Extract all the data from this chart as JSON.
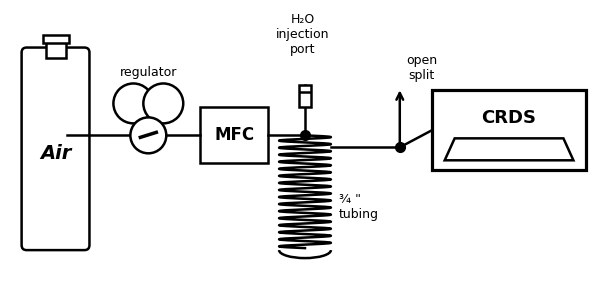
{
  "bg_color": "#ffffff",
  "line_color": "#000000",
  "labels": {
    "air": "Air",
    "regulator": "regulator",
    "mfc": "MFC",
    "h2o": "H₂O\ninjection\nport",
    "open_split": "open\nsplit",
    "crds": "CRDS",
    "tubing": "¾ \"\ntubing"
  },
  "figsize": [
    6.0,
    3.0
  ],
  "dpi": 100
}
